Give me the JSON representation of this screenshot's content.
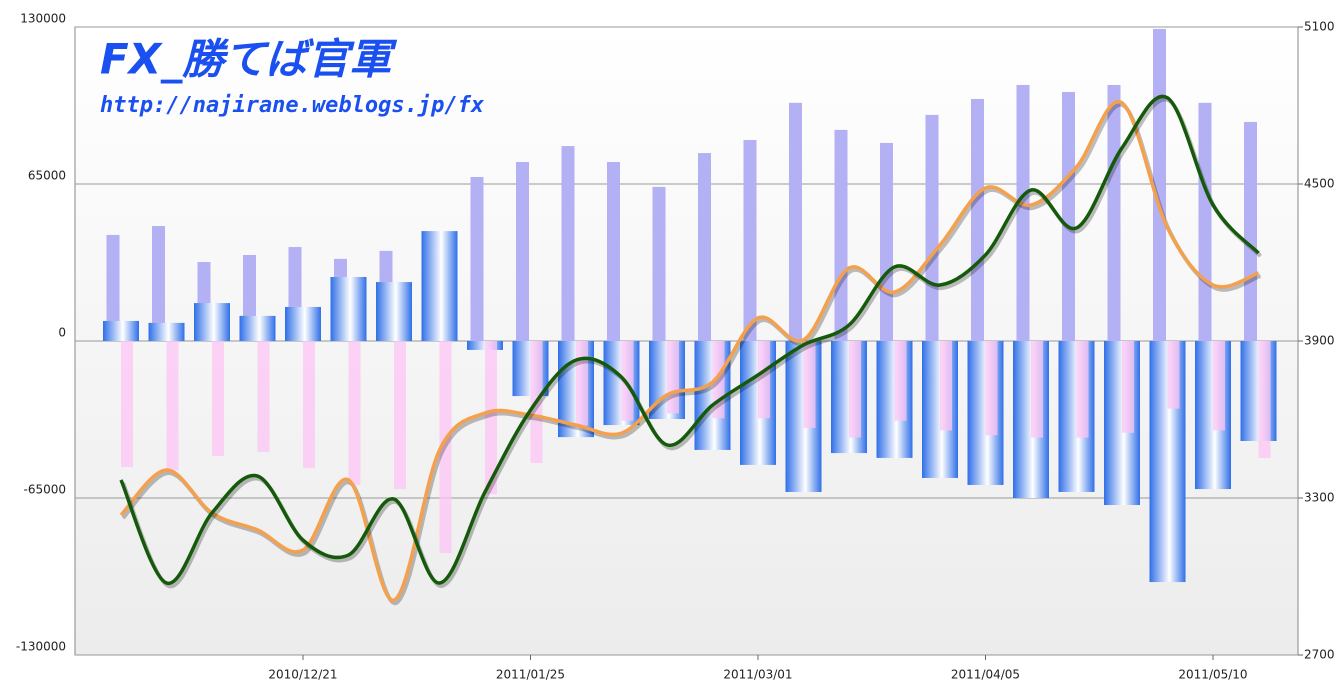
{
  "chart_data": {
    "type": "combo",
    "title": "FX_勝てば官軍",
    "subtitle": "http://najirane.weblogs.jp/fx",
    "categories": [
      null,
      null,
      null,
      null,
      "2010/12/21",
      null,
      null,
      null,
      null,
      "2011/01/25",
      null,
      null,
      null,
      null,
      "2011/03/01",
      null,
      null,
      null,
      null,
      "2011/04/05",
      null,
      null,
      null,
      null,
      "2011/05/10",
      null
    ],
    "series": [
      {
        "type": "bar",
        "color": "#b4b0f4",
        "values": [
          43900,
          47600,
          32700,
          35600,
          38900,
          34000,
          37300,
          42600,
          67900,
          74100,
          80700,
          74100,
          63800,
          77800,
          83200,
          98600,
          87400,
          82000,
          93600,
          100200,
          106000,
          103100,
          106000,
          129200,
          98600,
          90700
        ]
      },
      {
        "type": "bar",
        "color": "#3a7ef0",
        "values": [
          8300,
          7500,
          15700,
          10400,
          14100,
          26500,
          24400,
          45500,
          -3700,
          -22800,
          -39800,
          -34800,
          -32300,
          -45100,
          -51300,
          -62500,
          -46400,
          -48400,
          -56700,
          -59600,
          -65000,
          -62500,
          -67900,
          -99800,
          -61300,
          -41400
        ]
      },
      {
        "type": "bar",
        "color": "#fcc4f4",
        "values": [
          -52200,
          -53400,
          -47600,
          -46000,
          -52600,
          -59600,
          -61300,
          -87800,
          -63400,
          -50500,
          -35000,
          -33000,
          -30000,
          -32000,
          -32000,
          -36000,
          -40000,
          -33000,
          -37000,
          -39000,
          -40000,
          -40000,
          -38000,
          -28000,
          -37000,
          -48400
        ]
      },
      {
        "type": "line",
        "axis": "y2",
        "color": "#f4a04c",
        "values": [
          3235,
          3407,
          3243,
          3178,
          3101,
          3369,
          2910,
          3483,
          3625,
          3617,
          3579,
          3548,
          3694,
          3743,
          3988,
          3904,
          4179,
          4087,
          4267,
          4485,
          4420,
          4565,
          4810,
          4332,
          4114,
          4160
        ]
      },
      {
        "type": "line",
        "axis": "y2",
        "color": "#145a0a",
        "values": [
          3369,
          2975,
          3243,
          3384,
          3139,
          3082,
          3296,
          2975,
          3323,
          3636,
          3827,
          3762,
          3503,
          3655,
          3770,
          3885,
          3961,
          4183,
          4114,
          4229,
          4477,
          4332,
          4638,
          4829,
          4420,
          4236
        ]
      }
    ],
    "ylim": [
      -130000,
      130000
    ],
    "yticks": [
      -130000,
      -65000,
      0,
      65000,
      130000
    ],
    "y2lim": [
      2700,
      5100
    ],
    "y2ticks": [
      2700,
      3300,
      3900,
      4500,
      5100
    ],
    "grid": true
  }
}
